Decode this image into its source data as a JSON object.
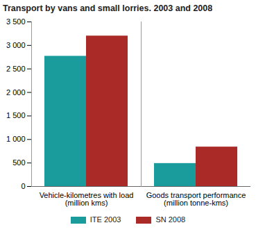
{
  "chart_data": {
    "type": "bar",
    "title": "Transport by vans and small lorries. 2003 and 2008",
    "categories": [
      "Vehicle-kilometres with load (million kms)",
      "Goods transport performance (million tonne-kms)"
    ],
    "series": [
      {
        "name": "ITE 2003",
        "color": "#1a9c9c",
        "values": [
          2770,
          490
        ]
      },
      {
        "name": "SN 2008",
        "color": "#aa2a28",
        "values": [
          3200,
          840
        ]
      }
    ],
    "ylim": [
      0,
      3500
    ],
    "yticks": [
      0,
      500,
      {
        "value": 1000,
        "label": "1 000"
      },
      {
        "value": 1500,
        "label": "1 500"
      },
      {
        "value": 2000,
        "label": "2 000"
      },
      {
        "value": 2500,
        "label": "2 500"
      },
      {
        "value": 3000,
        "label": "3 000"
      },
      {
        "value": 3500,
        "label": "3 500"
      }
    ],
    "grid": false,
    "legend": "bottom"
  }
}
